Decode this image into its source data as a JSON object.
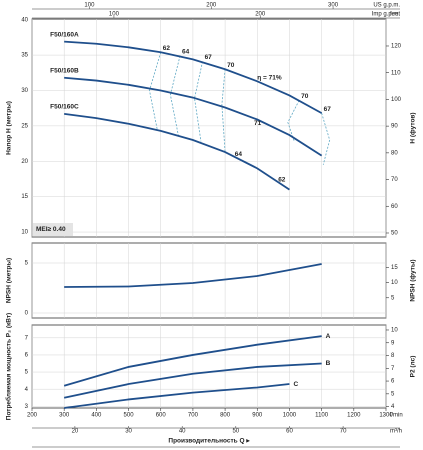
{
  "chart_data": [
    {
      "type": "line",
      "xlim": [
        200,
        1300
      ],
      "xticks": [
        200,
        300,
        400,
        500,
        600,
        700,
        800,
        900,
        1000,
        1100,
        1200,
        1300
      ],
      "ylim": [
        9.3,
        40.1
      ],
      "yticks": [
        10,
        15,
        20,
        25,
        30,
        35,
        40
      ],
      "y2lim": [
        48.5,
        130.1
      ],
      "y2ticks": [
        50,
        60,
        70,
        80,
        90,
        100,
        110,
        120
      ],
      "ylabel": "Напор H (метры)",
      "y2label": "H (футов)",
      "y2unit": "feet",
      "grid": true,
      "mei": "MEI≥ 0.40",
      "top_axes": [
        {
          "label": "US g.p.m.",
          "xlim": [
            52.84,
            343.46
          ],
          "xticks": [
            100,
            200,
            300
          ]
        },
        {
          "label": "Imp g.p.m.",
          "xlim": [
            43.99,
            285.96
          ],
          "xticks": [
            100,
            200
          ]
        }
      ],
      "series": [
        {
          "name": "F50/160A",
          "color": "#1f4f8c",
          "x": [
            300,
            400,
            500,
            600,
            700,
            800,
            900,
            1000,
            1100
          ],
          "values": [
            36.9,
            36.6,
            36.1,
            35.4,
            34.4,
            33.0,
            31.3,
            29.3,
            26.8
          ]
        },
        {
          "name": "F50/160B",
          "color": "#1f4f8c",
          "x": [
            300,
            400,
            500,
            600,
            700,
            800,
            900,
            1000,
            1100
          ],
          "values": [
            31.8,
            31.4,
            30.8,
            30.0,
            29.0,
            27.6,
            25.9,
            23.7,
            20.8
          ]
        },
        {
          "name": "F50/160C",
          "color": "#1f4f8c",
          "x": [
            300,
            400,
            500,
            600,
            700,
            800,
            900,
            1000
          ],
          "values": [
            26.7,
            26.1,
            25.3,
            24.3,
            23.0,
            21.3,
            19.0,
            16.0
          ]
        }
      ],
      "contour_color": "#5fa8c4",
      "contours": [
        {
          "label": "62",
          "x": [
            600,
            565,
            590
          ],
          "y": [
            35.4,
            30,
            24.3
          ]
        },
        {
          "label": "64",
          "x": [
            660,
            630,
            655
          ],
          "y": [
            34.9,
            29.4,
            23.6
          ]
        },
        {
          "label": "67",
          "x": [
            730,
            705,
            725
          ],
          "y": [
            34.1,
            28.9,
            22.8
          ]
        },
        {
          "label": "70",
          "x": [
            800,
            790,
            800
          ],
          "y": [
            33.0,
            28.0,
            21.3
          ]
        },
        {
          "label": "70",
          "x": [
            1030,
            995,
            1015
          ],
          "y": [
            28.6,
            25.5,
            22.8
          ]
        },
        {
          "label": "67",
          "x": [
            1100,
            1125,
            1105
          ],
          "y": [
            26.8,
            23,
            19.5
          ]
        }
      ],
      "points": [
        {
          "label": "η = 71%",
          "x": 900,
          "y": 31.2
        },
        {
          "label": "71",
          "x": 890,
          "y": 24.8
        },
        {
          "label": "64",
          "x": 830,
          "y": 20.4
        },
        {
          "label": "62",
          "x": 965,
          "y": 16.8
        }
      ]
    },
    {
      "type": "line",
      "xlim": [
        200,
        1300
      ],
      "xticks": [
        200,
        300,
        400,
        500,
        600,
        700,
        800,
        900,
        1000,
        1100,
        1200,
        1300
      ],
      "ylim": [
        -0.5,
        7
      ],
      "yticks": [
        0,
        5
      ],
      "y2lim": [
        -1.64,
        22.97
      ],
      "y2ticks": [
        5,
        10,
        15
      ],
      "ylabel": "NPSH (метры)",
      "y2label": "NPSH (футы)",
      "grid": true,
      "series": [
        {
          "color": "#1f4f8c",
          "x": [
            300,
            500,
            700,
            900,
            1100
          ],
          "values": [
            2.6,
            2.65,
            3.0,
            3.7,
            4.9
          ]
        }
      ]
    },
    {
      "type": "line",
      "xlim": [
        200,
        1300
      ],
      "xticks": [
        200,
        300,
        400,
        500,
        600,
        700,
        800,
        900,
        1000,
        1100,
        1200,
        1300
      ],
      "ylim": [
        2.9,
        7.75
      ],
      "yticks": [
        3,
        4,
        5,
        6,
        7
      ],
      "y2lim": [
        3.89,
        10.39
      ],
      "y2ticks": [
        4,
        5,
        6,
        7,
        8,
        9,
        10
      ],
      "ylabel": "Потребляемая мощность P₂ (кВт)",
      "y2label": "P2 (лс)",
      "grid": true,
      "xunit": "l/min",
      "xlabel": "Производительность Q ▸",
      "bottom_axes": [
        {
          "label": "m³/h",
          "xlim": [
            12,
            78
          ],
          "xticks": [
            20,
            30,
            40,
            50,
            60,
            70
          ]
        }
      ],
      "series": [
        {
          "name": "A",
          "color": "#1f4f8c",
          "x": [
            300,
            500,
            700,
            900,
            1100
          ],
          "values": [
            4.2,
            5.3,
            6.0,
            6.6,
            7.1
          ]
        },
        {
          "name": "B",
          "color": "#1f4f8c",
          "x": [
            300,
            500,
            700,
            900,
            1100
          ],
          "values": [
            3.5,
            4.3,
            4.9,
            5.3,
            5.5
          ]
        },
        {
          "name": "C",
          "color": "#1f4f8c",
          "x": [
            300,
            500,
            700,
            900,
            1000
          ],
          "values": [
            2.9,
            3.4,
            3.8,
            4.1,
            4.3
          ]
        }
      ]
    }
  ]
}
